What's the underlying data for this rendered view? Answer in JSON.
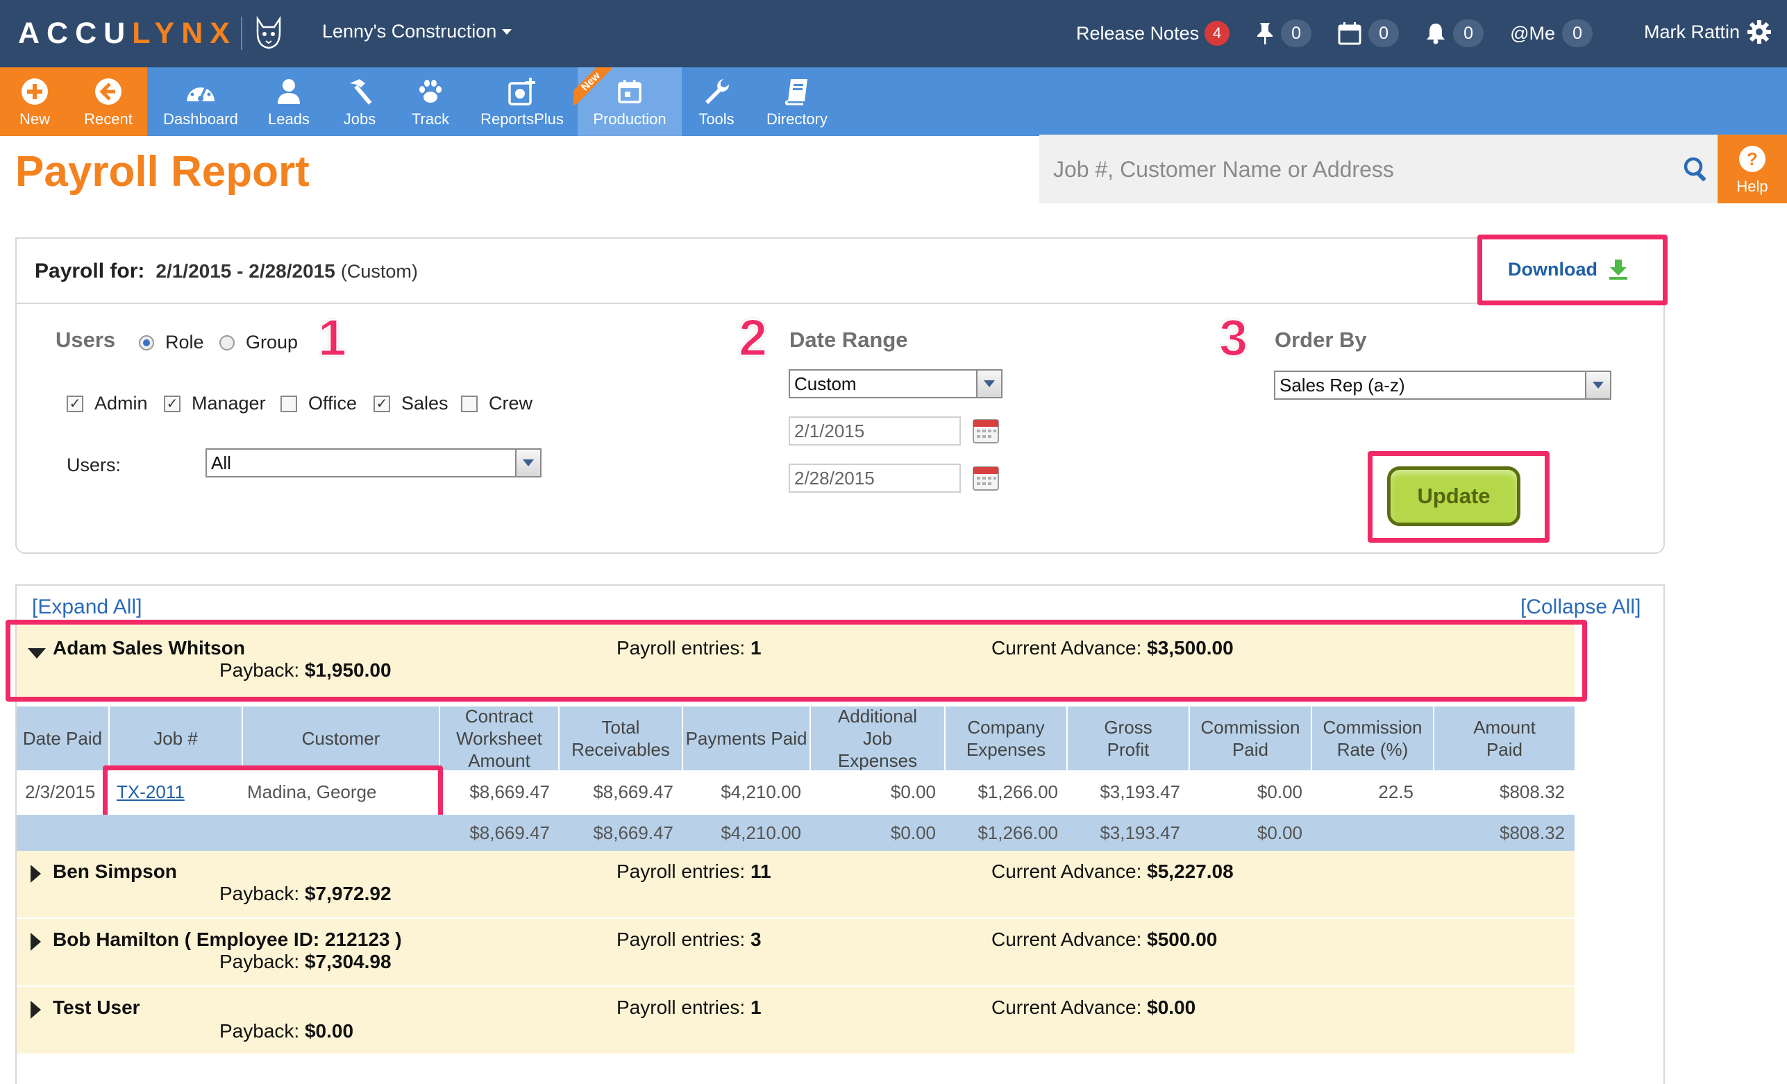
{
  "app": {
    "logo_a": "ACCU",
    "logo_b": "LYNX",
    "company": "Lenny's Construction",
    "release_notes": "Release Notes",
    "release_count": "4",
    "pin_count": "0",
    "calendar_count": "0",
    "bell_count": "0",
    "me_label": "@Me",
    "me_count": "0",
    "user_name": "Mark Rattin"
  },
  "nav": {
    "new": "New",
    "recent": "Recent",
    "dashboard": "Dashboard",
    "leads": "Leads",
    "jobs": "Jobs",
    "track": "Track",
    "reportsplus": "ReportsPlus",
    "production": "Production",
    "production_badge": "New",
    "tools": "Tools",
    "directory": "Directory",
    "help": "Help",
    "search_placeholder": "Job #, Customer Name or Address"
  },
  "page": {
    "title": "Payroll Report",
    "payroll_for_label": "Payroll for:",
    "payroll_dates": "2/1/2015 - 2/28/2015",
    "payroll_mode": "(Custom)",
    "download": "Download"
  },
  "filters": {
    "users_label": "Users",
    "role": "Role",
    "group": "Group",
    "step1": "1",
    "step2": "2",
    "step3": "3",
    "roles": {
      "admin": "Admin",
      "manager": "Manager",
      "office": "Office",
      "sales": "Sales",
      "crew": "Crew"
    },
    "users_select_label": "Users:",
    "users_select_value": "All",
    "date_range_label": "Date Range",
    "date_range_value": "Custom",
    "start_date": "2/1/2015",
    "end_date": "2/28/2015",
    "order_by_label": "Order By",
    "order_by_value": "Sales Rep (a-z)",
    "update": "Update"
  },
  "results": {
    "expand_all": "[Expand All]",
    "collapse_all": "[Collapse All]",
    "payback_label": "Payback:",
    "entries_label": "Payroll entries:",
    "advance_label": "Current Advance:",
    "groups": [
      {
        "name": "Adam Sales Whitson",
        "payback": "$1,950.00",
        "entries": "1",
        "advance": "$3,500.00"
      },
      {
        "name": "Ben Simpson",
        "payback": "$7,972.92",
        "entries": "11",
        "advance": "$5,227.08"
      },
      {
        "name": "Bob Hamilton ( Employee ID: 212123 )",
        "payback": "$7,304.98",
        "entries": "3",
        "advance": "$500.00"
      },
      {
        "name": "Test User",
        "payback": "$0.00",
        "entries": "1",
        "advance": "$0.00"
      }
    ],
    "columns": [
      "Date Paid",
      "Job #",
      "Customer",
      "Contract Worksheet Amount",
      "Total Receivables",
      "Payments Paid",
      "Additional Job Expenses",
      "Company Expenses",
      "Gross Profit",
      "Commission Paid",
      "Commission Rate (%)",
      "Amount Paid"
    ],
    "row": {
      "date_paid": "2/3/2015",
      "job": "TX-2011",
      "customer": "Madina, George",
      "contract": "$8,669.47",
      "receivables": "$8,669.47",
      "payments": "$4,210.00",
      "add_expenses": "$0.00",
      "company_expenses": "$1,266.00",
      "gross_profit": "$3,193.47",
      "commission_paid": "$0.00",
      "commission_rate": "22.5",
      "amount_paid": "$808.32"
    },
    "totals": {
      "contract": "$8,669.47",
      "receivables": "$8,669.47",
      "payments": "$4,210.00",
      "add_expenses": "$0.00",
      "company_expenses": "$1,266.00",
      "gross_profit": "$3,193.47",
      "commission_paid": "$0.00",
      "amount_paid": "$808.32"
    }
  }
}
